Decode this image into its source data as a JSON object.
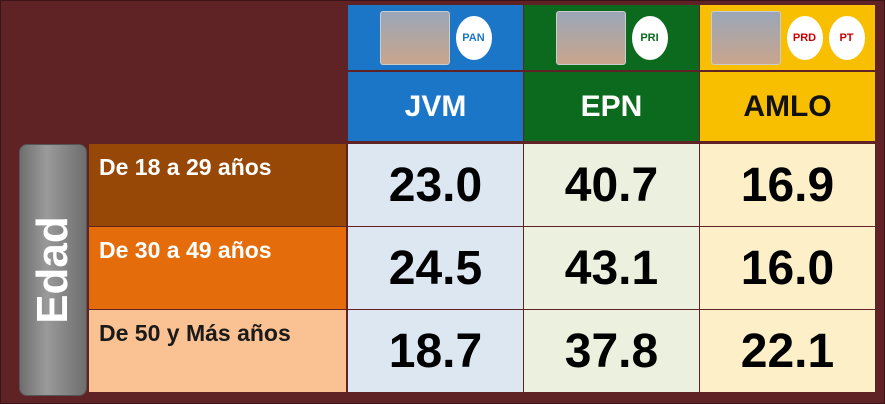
{
  "table": {
    "side_label": "Edad",
    "columns": [
      {
        "name": "JVM",
        "logos": [
          "PAN"
        ],
        "color": "#1b76c8",
        "cell": "#dde7f2"
      },
      {
        "name": "EPN",
        "logos": [
          "PRI"
        ],
        "color": "#0b6a1e",
        "cell": "#ecf1df"
      },
      {
        "name": "AMLO",
        "logos": [
          "PRD",
          "PT"
        ],
        "color": "#f8bf00",
        "cell": "#fdf0c8"
      }
    ],
    "rows": [
      {
        "label": "De 18 a 29 años",
        "color": "#984806",
        "text": "#ffffff",
        "values": [
          "23.0",
          "40.7",
          "16.9"
        ]
      },
      {
        "label": "De 30 a 49 años",
        "color": "#e46c0a",
        "text": "#ffffff",
        "values": [
          "24.5",
          "43.1",
          "16.0"
        ]
      },
      {
        "label": "De 50 y Más años",
        "color": "#fac192",
        "text": "#1a1a1a",
        "values": [
          "18.7",
          "37.8",
          "22.1"
        ]
      }
    ]
  }
}
